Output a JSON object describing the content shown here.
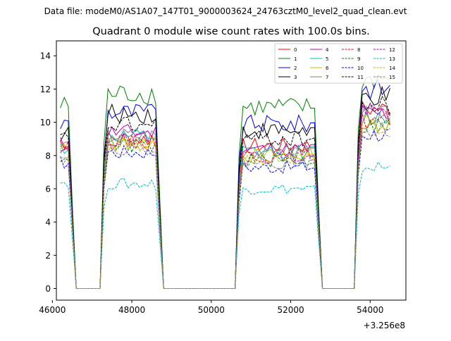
{
  "suptitle": "Data file: modeM0/AS1A07_147T01_9000003624_24763cztM0_level2_quad_clean.evt",
  "chart_data": {
    "type": "line",
    "title": "Quadrant 0 module wise count rates with 100.0s bins.",
    "xlabel": "",
    "ylabel": "",
    "x_offset_label": "+3.256e8",
    "xlim": [
      46100,
      54900
    ],
    "ylim": [
      -0.7,
      14.9
    ],
    "x_ticks": [
      46000,
      48000,
      50000,
      52000,
      54000
    ],
    "x_tick_labels": [
      "46000",
      "48000",
      "50000",
      "52000",
      "54000"
    ],
    "y_ticks": [
      0,
      2,
      4,
      6,
      8,
      10,
      12,
      14
    ],
    "y_tick_labels": [
      "0",
      "2",
      "4",
      "6",
      "8",
      "10",
      "12",
      "14"
    ],
    "legend_position": "top-right",
    "legend_columns": 4,
    "segments": [
      {
        "x_start": 46200,
        "x_end": 46400
      },
      {
        "x_start": 47400,
        "x_end": 48600
      },
      {
        "x_start": 50800,
        "x_end": 52600
      },
      {
        "x_start": 53800,
        "x_end": 54500
      }
    ],
    "series": [
      {
        "name": "0",
        "color": "#ff0000",
        "dash": "solid",
        "levels": [
          8.8,
          9.0,
          8.6,
          10.8
        ]
      },
      {
        "name": "1",
        "color": "#008000",
        "dash": "solid",
        "levels": [
          11.0,
          11.7,
          10.9,
          12.6
        ]
      },
      {
        "name": "2",
        "color": "#0000ff",
        "dash": "solid",
        "levels": [
          9.9,
          10.6,
          9.9,
          12.0
        ]
      },
      {
        "name": "3",
        "color": "#000000",
        "dash": "solid",
        "levels": [
          9.3,
          10.5,
          9.5,
          11.5
        ]
      },
      {
        "name": "4",
        "color": "#bf00bf",
        "dash": "solid",
        "levels": [
          8.7,
          9.4,
          8.4,
          10.5
        ]
      },
      {
        "name": "5",
        "color": "#00bfbf",
        "dash": "solid",
        "levels": [
          8.5,
          9.1,
          8.2,
          10.3
        ]
      },
      {
        "name": "6",
        "color": "#bfbf00",
        "dash": "solid",
        "levels": [
          8.3,
          8.7,
          8.0,
          10.0
        ]
      },
      {
        "name": "7",
        "color": "#808080",
        "dash": "solid",
        "levels": [
          8.6,
          9.2,
          8.3,
          10.4
        ]
      },
      {
        "name": "8",
        "color": "#ff0000",
        "dash": "dashed",
        "levels": [
          8.4,
          8.8,
          8.0,
          10.1
        ]
      },
      {
        "name": "9",
        "color": "#008000",
        "dash": "dashed",
        "levels": [
          8.0,
          8.6,
          7.7,
          9.8
        ]
      },
      {
        "name": "10",
        "color": "#0000ff",
        "dash": "dashed",
        "levels": [
          7.6,
          8.2,
          7.3,
          9.3
        ]
      },
      {
        "name": "11",
        "color": "#000000",
        "dash": "dashed",
        "levels": [
          9.0,
          9.8,
          9.0,
          11.0
        ]
      },
      {
        "name": "12",
        "color": "#bf00bf",
        "dash": "dashed",
        "levels": [
          8.2,
          8.9,
          7.9,
          10.6
        ]
      },
      {
        "name": "13",
        "color": "#00bfbf",
        "dash": "dashed",
        "levels": [
          6.4,
          6.3,
          6.0,
          7.3
        ]
      },
      {
        "name": "14",
        "color": "#bfbf00",
        "dash": "dashed",
        "levels": [
          8.1,
          8.6,
          7.8,
          9.7
        ]
      },
      {
        "name": "15",
        "color": "#808080",
        "dash": "dashed",
        "levels": [
          8.0,
          8.5,
          7.6,
          9.5
        ]
      }
    ]
  }
}
